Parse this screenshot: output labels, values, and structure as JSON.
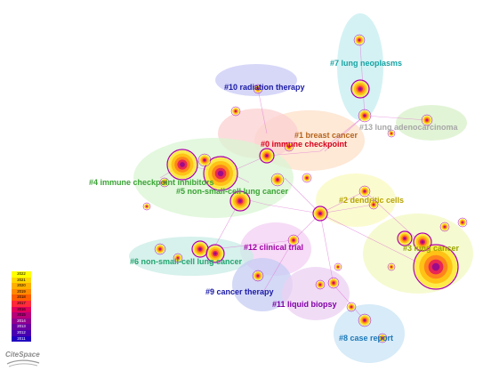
{
  "clusters": [
    {
      "id": "c10",
      "label": "#10 radiation therapy",
      "color": "#1a1aa6"
    },
    {
      "id": "c7",
      "label": "#7 lung neoplasms",
      "color": "#16a3a3"
    },
    {
      "id": "c13",
      "label": "#13 lung adenocarcinoma",
      "color": "#a7a7a7"
    },
    {
      "id": "c1",
      "label": "#1 breast cancer",
      "color": "#b5651d"
    },
    {
      "id": "c0",
      "label": "#0 immune checkpoint",
      "color": "#d6001c"
    },
    {
      "id": "c4",
      "label": "#4 immune checkpoint inhibitors",
      "color": "#3aa335"
    },
    {
      "id": "c5",
      "label": "#5 non-small-cell lung cancer",
      "color": "#3aa335"
    },
    {
      "id": "c2",
      "label": "#2 dendritic cells",
      "color": "#b7a400"
    },
    {
      "id": "c3",
      "label": "#3 lung cancer",
      "color": "#9aa600"
    },
    {
      "id": "c12",
      "label": "#12 clinical trial",
      "color": "#a000a6"
    },
    {
      "id": "c6",
      "label": "#6 non-small-cell lung cancer",
      "color": "#21a56f"
    },
    {
      "id": "c9",
      "label": "#9 cancer therapy",
      "color": "#1a1aa6"
    },
    {
      "id": "c11",
      "label": "#11 liquid biopsy",
      "color": "#8000a6"
    },
    {
      "id": "c8",
      "label": "#8 case report",
      "color": "#1c78b8"
    }
  ],
  "legend": {
    "years": [
      "2022",
      "2021",
      "2020",
      "2019",
      "2018",
      "2017",
      "2016",
      "2015",
      "2014",
      "2013",
      "2012",
      "2011"
    ],
    "colors": [
      "#ffff00",
      "#ffd700",
      "#ffb000",
      "#ff8a00",
      "#ff5e00",
      "#ff2a3a",
      "#e0005e",
      "#b8007a",
      "#900090",
      "#6a00a0",
      "#4800b0",
      "#2000c0"
    ]
  },
  "logo": {
    "text": "CiteSpace"
  }
}
